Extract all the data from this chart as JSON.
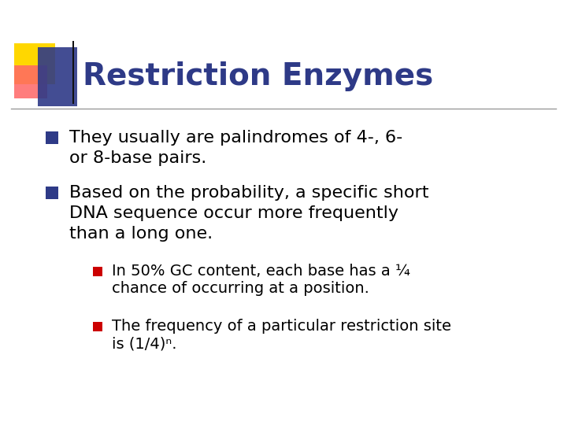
{
  "title": "Restriction Enzymes",
  "title_color": "#2E3A87",
  "title_fontsize": 28,
  "background_color": "#FFFFFF",
  "bullet1_line1": "They usually are palindromes of 4-, 6-",
  "bullet1_line2": "or 8-base pairs.",
  "bullet2_line1": "Based on the probability, a specific short",
  "bullet2_line2": "DNA sequence occur more frequently",
  "bullet2_line3": "than a long one.",
  "sub_bullet1_line1": "In 50% GC content, each base has a ¼",
  "sub_bullet1_line2": "chance of occurring at a position.",
  "sub_bullet2_line1": "The frequency of a particular restriction site",
  "sub_bullet2_line2": "is (1/4)ⁿ.",
  "bullet_color": "#2E3A87",
  "sub_bullet_color": "#CC0000",
  "text_color": "#000000",
  "body_fontsize": 16,
  "sub_fontsize": 14,
  "accent_yellow": "#FFD700",
  "accent_red": "#FF6666",
  "accent_blue": "#2E3A87",
  "line_color": "#999999"
}
